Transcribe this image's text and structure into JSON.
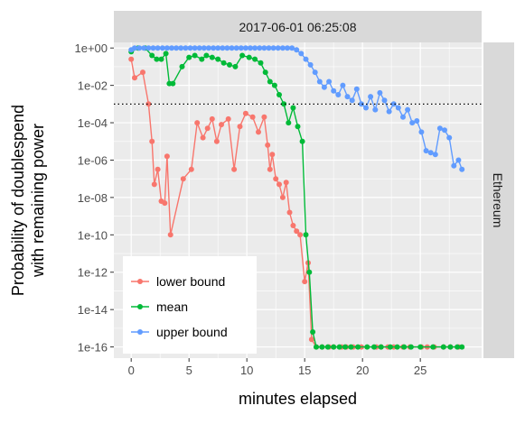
{
  "chart_data": {
    "type": "line",
    "facet_top": "2017-06-01 06:25:08",
    "facet_right": "Ethereum",
    "xlabel": "minutes elapsed",
    "ylabel_line1": "Probability of doublespend",
    "ylabel_line2": "with remaining power",
    "x_scale": "linear",
    "y_scale": "log10",
    "xlim": [
      -1.5,
      30.3
    ],
    "ylim_log10": [
      -16.6,
      0.3
    ],
    "x_ticks": [
      0,
      5,
      10,
      15,
      20,
      25
    ],
    "x_tick_labels": [
      "0",
      "5",
      "10",
      "15",
      "20",
      "25"
    ],
    "y_ticks_log10": [
      0,
      -2,
      -4,
      -6,
      -8,
      -10,
      -12,
      -14,
      -16
    ],
    "y_tick_labels": [
      "1e+00",
      "1e-02",
      "1e-04",
      "1e-06",
      "1e-08",
      "1e-10",
      "1e-12",
      "1e-14",
      "1e-16"
    ],
    "threshold_log10": -3,
    "grid": true,
    "legend_position": "bottom-left",
    "colors": {
      "panel_bg": "#ebebeb",
      "grid_major": "#ffffff",
      "strip_bg": "#d9d9d9",
      "lower": "#f8766d",
      "mean": "#00ba38",
      "upper": "#619cff"
    },
    "series": [
      {
        "name": "lower bound",
        "color": "#f8766d",
        "x": [
          0,
          0.3,
          1,
          1.5,
          1.8,
          2.0,
          2.3,
          2.6,
          2.9,
          3.1,
          3.4,
          4.5,
          5.2,
          5.7,
          6.2,
          6.6,
          7.0,
          7.4,
          7.8,
          8.4,
          8.9,
          9.4,
          9.9,
          10.5,
          11.0,
          11.5,
          11.8,
          12.0,
          12.2,
          12.5,
          12.8,
          13.1,
          13.4,
          13.7,
          14.0,
          14.3,
          14.6,
          15.0,
          15.3,
          15.6,
          16.0,
          16.5,
          17.1,
          17.5,
          18.2,
          18.6,
          19.2,
          19.9,
          21.2,
          21.6,
          22.2,
          22.7,
          23.5,
          24.1,
          25.1,
          25.6,
          26.2,
          27.0,
          27.6,
          28.3
        ],
        "y_log10": [
          -0.6,
          -1.6,
          -1.3,
          -3.0,
          -5.0,
          -7.3,
          -6.5,
          -8.2,
          -8.3,
          -5.8,
          -10.0,
          -7.0,
          -6.5,
          -4.0,
          -4.8,
          -4.3,
          -3.8,
          -5.0,
          -4.1,
          -3.8,
          -6.5,
          -4.2,
          -3.5,
          -3.7,
          -4.5,
          -3.7,
          -5.2,
          -6.5,
          -5.7,
          -7.0,
          -7.3,
          -8.0,
          -7.2,
          -8.8,
          -9.5,
          -9.8,
          -10.0,
          -12.5,
          -11.5,
          -15.6,
          -16.0,
          -16.0,
          -16.0,
          -16.0,
          -16.0,
          -16.0,
          -16.0,
          -16.0,
          -16.0,
          -16.0,
          -16.0,
          -16.0,
          -16.0,
          -16.0,
          -16.0,
          -16.0,
          -16.0,
          -16.0,
          -16.0,
          -16.0
        ]
      },
      {
        "name": "mean",
        "color": "#00ba38",
        "x": [
          0,
          0.6,
          1.2,
          1.8,
          2.2,
          2.6,
          3.0,
          3.3,
          3.6,
          4.4,
          5.0,
          5.5,
          6.1,
          6.5,
          7.0,
          7.5,
          8.0,
          8.5,
          9.0,
          9.6,
          10.2,
          10.7,
          11.2,
          11.6,
          12.0,
          12.4,
          12.8,
          13.2,
          13.6,
          14.0,
          14.4,
          14.8,
          15.1,
          15.4,
          15.7,
          16.0,
          16.5,
          17.0,
          17.5,
          18.0,
          18.5,
          19.0,
          19.6,
          20.4,
          21.0,
          21.6,
          22.4,
          23.0,
          23.6,
          24.2,
          25.0,
          26.1,
          27.0,
          27.6,
          28.2,
          28.6
        ],
        "y_log10": [
          -0.2,
          0,
          0,
          -0.4,
          -0.6,
          -0.6,
          -0.3,
          -1.9,
          -1.9,
          -1.0,
          -0.5,
          -0.4,
          -0.6,
          -0.4,
          -0.5,
          -0.6,
          -0.8,
          -0.9,
          -1.0,
          -0.4,
          -0.5,
          -0.6,
          -0.8,
          -1.3,
          -1.8,
          -2.0,
          -2.5,
          -3.0,
          -4.0,
          -3.2,
          -4.2,
          -5.0,
          -10.0,
          -12.0,
          -15.2,
          -16.0,
          -16.0,
          -16.0,
          -16.0,
          -16.0,
          -16.0,
          -16.0,
          -16.0,
          -16.0,
          -16.0,
          -16.0,
          -16.0,
          -16.0,
          -16.0,
          -16.0,
          -16.0,
          -16.0,
          -16.0,
          -16.0,
          -16.0,
          -16.0
        ]
      },
      {
        "name": "upper bound",
        "color": "#619cff",
        "x": [
          0,
          0.3,
          0.7,
          1.1,
          1.5,
          1.9,
          2.3,
          2.7,
          3.1,
          3.5,
          3.9,
          4.3,
          4.7,
          5.1,
          5.5,
          5.9,
          6.3,
          6.7,
          7.1,
          7.5,
          7.9,
          8.3,
          8.7,
          9.1,
          9.5,
          9.9,
          10.3,
          10.7,
          11.1,
          11.5,
          11.9,
          12.3,
          12.7,
          13.1,
          13.5,
          13.9,
          14.3,
          14.7,
          15.1,
          15.5,
          15.9,
          16.3,
          16.7,
          17.1,
          17.5,
          17.9,
          18.3,
          18.7,
          19.1,
          19.5,
          19.9,
          20.3,
          20.7,
          21.1,
          21.5,
          21.9,
          22.3,
          22.7,
          23.1,
          23.5,
          23.9,
          24.3,
          24.7,
          25.1,
          25.5,
          25.9,
          26.3,
          26.7,
          27.1,
          27.5,
          27.9,
          28.3,
          28.6
        ],
        "y_log10": [
          -0.1,
          0,
          0,
          0,
          0,
          0,
          0,
          0,
          0,
          0,
          0,
          0,
          0,
          0,
          0,
          0,
          0,
          0,
          0,
          0,
          0,
          0,
          0,
          0,
          0,
          0,
          0,
          0,
          0,
          0,
          0,
          0,
          0,
          0,
          0,
          0,
          -0.1,
          -0.3,
          -0.6,
          -0.9,
          -1.3,
          -1.8,
          -2.1,
          -1.8,
          -2.3,
          -2.5,
          -2.0,
          -2.6,
          -2.8,
          -2.2,
          -3.0,
          -3.2,
          -2.6,
          -3.3,
          -2.4,
          -2.8,
          -3.4,
          -3.0,
          -3.2,
          -3.7,
          -3.3,
          -4.0,
          -3.9,
          -4.5,
          -5.5,
          -5.6,
          -5.7,
          -4.3,
          -4.4,
          -4.8,
          -6.3,
          -6.0,
          -6.5
        ]
      }
    ]
  }
}
